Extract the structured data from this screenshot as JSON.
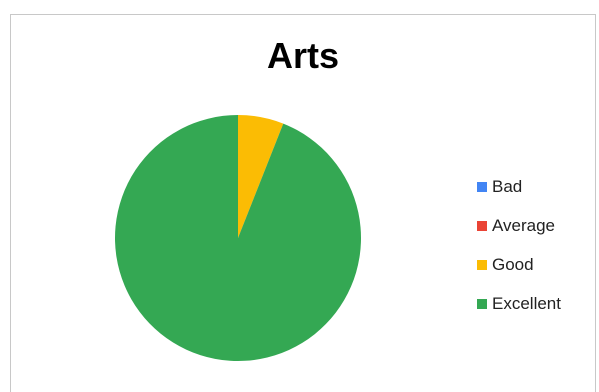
{
  "chart_data": {
    "type": "pie",
    "title": "Arts",
    "categories": [
      "Bad",
      "Average",
      "Good",
      "Excellent"
    ],
    "values": [
      0,
      0,
      6,
      94
    ],
    "colors": [
      "#4285f4",
      "#ea4335",
      "#fbbc04",
      "#34a853"
    ],
    "legend_position": "right",
    "start_angle_deg": 0,
    "direction": "clockwise"
  }
}
